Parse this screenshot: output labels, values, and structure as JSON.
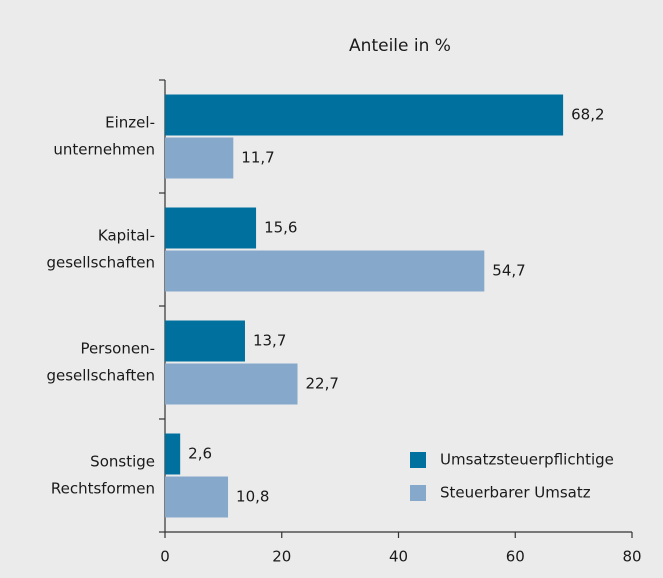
{
  "chart_data": {
    "type": "bar",
    "orientation": "horizontal",
    "title": "Anteile in %",
    "categories": [
      [
        "Einzel-",
        "unternehmen"
      ],
      [
        "Kapital-",
        "gesellschaften"
      ],
      [
        "Personen-",
        "gesellschaften"
      ],
      [
        "Sonstige",
        "Rechtsformen"
      ]
    ],
    "series": [
      {
        "name": "Umsatzsteuerpflichtige",
        "color": "#00709f",
        "values": [
          68.2,
          15.6,
          13.7,
          2.6
        ],
        "value_labels": [
          "68,2",
          "15,6",
          "13,7",
          "2,6"
        ]
      },
      {
        "name": "Steuerbarer Umsatz",
        "color": "#86a9cb",
        "values": [
          11.7,
          54.7,
          22.7,
          10.8
        ],
        "value_labels": [
          "11,7",
          "54,7",
          "22,7",
          "10,8"
        ]
      }
    ],
    "xlim": [
      0,
      80
    ],
    "xticks": [
      0,
      20,
      40,
      60,
      80
    ],
    "grid": false,
    "legend": "lower right"
  }
}
